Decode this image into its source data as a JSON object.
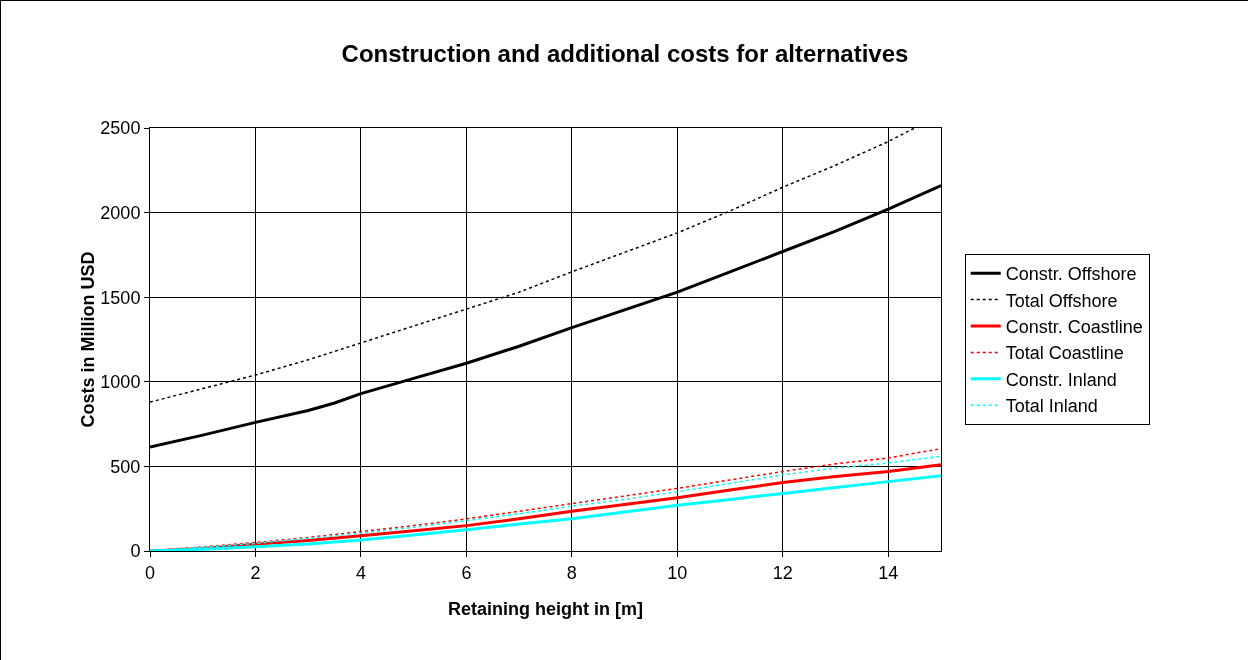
{
  "chart_data": {
    "type": "line",
    "title": "Construction and additional costs for alternatives",
    "xlabel": "Retaining height in [m]",
    "ylabel": "Costs in Million USD",
    "xlim": [
      0,
      15
    ],
    "xticks": [
      0,
      2,
      4,
      6,
      8,
      10,
      12,
      14
    ],
    "ylim": [
      0,
      2500
    ],
    "yticks": [
      0,
      500,
      1000,
      1500,
      2000,
      2500
    ],
    "grid": true,
    "legend": "right",
    "marker": "none",
    "series": [
      {
        "name": "Constr. Offshore",
        "color": "#000000",
        "line_style": "solid",
        "x": [
          0,
          1,
          2,
          3,
          3.5,
          4,
          5,
          6,
          7,
          8,
          9,
          10,
          11,
          12,
          13,
          14,
          15
        ],
        "values": [
          615,
          685,
          760,
          830,
          875,
          930,
          1020,
          1110,
          1210,
          1320,
          1425,
          1530,
          1650,
          1770,
          1890,
          2020,
          2160
        ]
      },
      {
        "name": "Total Offshore",
        "color": "#000000",
        "line_style": "dotted",
        "x": [
          0,
          1,
          2,
          3,
          4,
          5,
          6,
          7,
          8,
          9,
          10,
          11,
          12,
          13,
          14,
          14.5
        ],
        "values": [
          880,
          960,
          1040,
          1130,
          1230,
          1330,
          1430,
          1530,
          1650,
          1765,
          1880,
          2010,
          2150,
          2280,
          2420,
          2500
        ]
      },
      {
        "name": "Constr. Coastline",
        "color": "#ff0000",
        "line_style": "solid",
        "x": [
          0,
          1,
          2,
          3,
          4,
          5,
          6,
          7,
          8,
          9,
          10,
          11,
          12,
          13,
          14,
          15
        ],
        "values": [
          0,
          15,
          40,
          62,
          90,
          120,
          150,
          190,
          235,
          275,
          315,
          360,
          405,
          440,
          470,
          510
        ]
      },
      {
        "name": "Total Coastline",
        "color": "#ff0000",
        "line_style": "dotted",
        "x": [
          0,
          1,
          2,
          3,
          4,
          5,
          6,
          7,
          8,
          9,
          10,
          11,
          12,
          13,
          14,
          15
        ],
        "values": [
          0,
          25,
          50,
          80,
          115,
          150,
          190,
          235,
          280,
          325,
          370,
          420,
          470,
          515,
          550,
          605
        ]
      },
      {
        "name": "Constr. Inland",
        "color": "#00ffff",
        "line_style": "solid",
        "x": [
          0,
          1,
          2,
          3,
          4,
          5,
          6,
          7,
          8,
          9,
          10,
          11,
          12,
          13,
          14,
          15
        ],
        "values": [
          0,
          10,
          25,
          42,
          65,
          95,
          125,
          160,
          190,
          230,
          270,
          305,
          340,
          375,
          410,
          445
        ]
      },
      {
        "name": "Total Inland",
        "color": "#00ffff",
        "line_style": "dotted",
        "x": [
          0,
          1,
          2,
          3,
          4,
          5,
          6,
          7,
          8,
          9,
          10,
          11,
          12,
          13,
          14,
          15
        ],
        "values": [
          0,
          22,
          45,
          75,
          105,
          140,
          180,
          220,
          265,
          305,
          350,
          400,
          450,
          490,
          520,
          560
        ]
      }
    ]
  }
}
